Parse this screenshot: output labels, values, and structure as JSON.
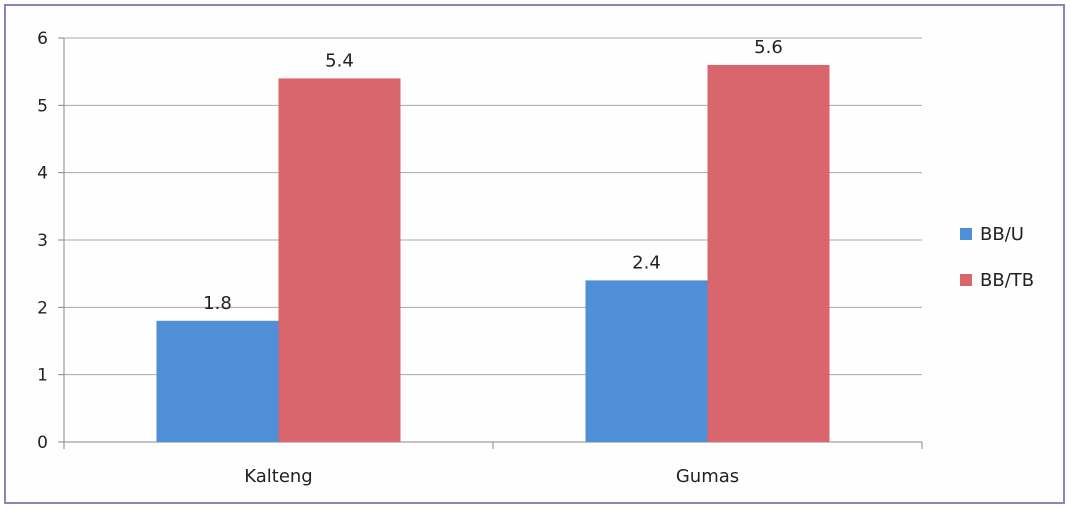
{
  "chart_data": {
    "type": "bar",
    "categories": [
      "Kalteng",
      "Gumas"
    ],
    "series": [
      {
        "name": "BB/U",
        "values": [
          1.8,
          2.4
        ],
        "labels": [
          "1.8",
          "2.4"
        ],
        "color": "#4f8fd8"
      },
      {
        "name": "BB/TB",
        "values": [
          5.4,
          5.6
        ],
        "labels": [
          "5.4",
          "5.6"
        ],
        "color": "#d9666d"
      }
    ],
    "ylim": [
      0,
      6
    ],
    "yticks": [
      "0",
      "1",
      "2",
      "3",
      "4",
      "5",
      "6"
    ],
    "grid": true,
    "legend_position": "right",
    "title": "",
    "xlabel": "",
    "ylabel": ""
  }
}
